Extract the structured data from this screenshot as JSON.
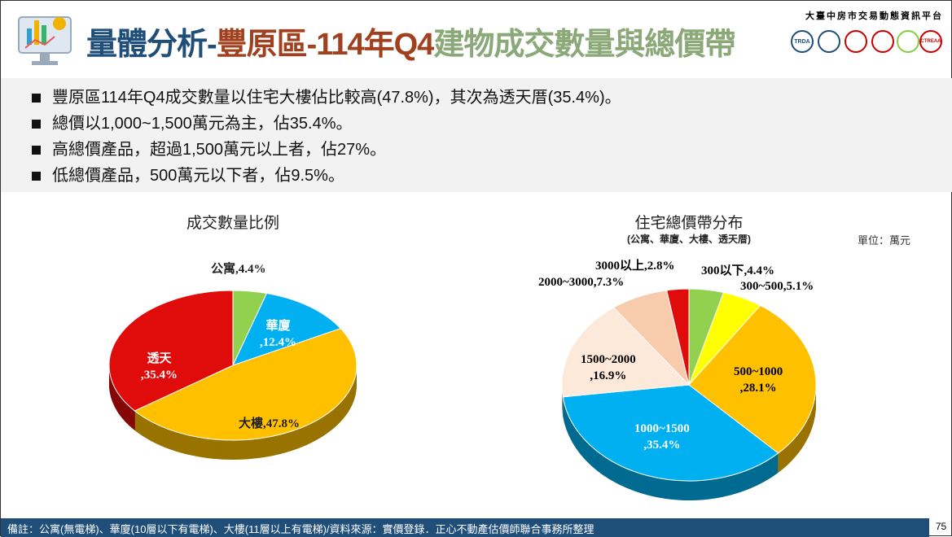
{
  "header": {
    "title_part1": "量體分析-",
    "title_part2": "豐原區-114年Q4",
    "title_part3": "建物成交數量與總價帶",
    "platform": "大臺中房市交易動態資訊平台",
    "logos": [
      "TRDA",
      "",
      "",
      "",
      "",
      "CTREAA"
    ]
  },
  "bullets": [
    "豐原區114年Q4成交數量以住宅大樓佔比較高(47.8%)，其次為透天厝(35.4%)。",
    "總價以1,000~1,500萬元為主，佔35.4%。",
    "高總價產品，超過1,500萬元以上者，佔27%。",
    "低總價產品，500萬元以下者，佔9.5%。"
  ],
  "chart_data": [
    {
      "type": "pie",
      "title": "成交數量比例",
      "categories": [
        "公寓",
        "華廈",
        "大樓",
        "透天"
      ],
      "values": [
        4.4,
        12.4,
        47.8,
        35.4
      ],
      "labels": [
        "公寓,4.4%",
        "華廈\n,12.4%",
        "大樓,47.8%",
        "透天\n,35.4%"
      ],
      "colors": [
        "#92d050",
        "#00b0f0",
        "#ffc000",
        "#e00b0b"
      ]
    },
    {
      "type": "pie",
      "title": "住宅總價帶分布",
      "subtitle": "(公寓、華廈、大樓、透天厝)",
      "unit": "單位：萬元",
      "categories": [
        "300以下",
        "300~500",
        "500~1000",
        "1000~1500",
        "1500~2000",
        "2000~3000",
        "3000以上"
      ],
      "values": [
        4.4,
        5.1,
        28.1,
        35.4,
        16.9,
        7.3,
        2.8
      ],
      "labels": [
        "300以下,4.4%",
        "300~500,5.1%",
        "500~1000\n,28.1%",
        "1000~1500\n,35.4%",
        "1500~2000\n,16.9%",
        "2000~3000,7.3%",
        "3000以上,2.8%"
      ],
      "colors": [
        "#92d050",
        "#ffff00",
        "#ffc000",
        "#00b0f0",
        "#fde9d9",
        "#f8cbad",
        "#e00b0b"
      ]
    }
  ],
  "footer": {
    "note": "備註：公寓(無電梯)、華廈(10層以下有電梯)、大樓(11層以上有電梯)/資料來源：實價登錄．正心不動產估價師聯合事務所整理",
    "page": "75"
  }
}
